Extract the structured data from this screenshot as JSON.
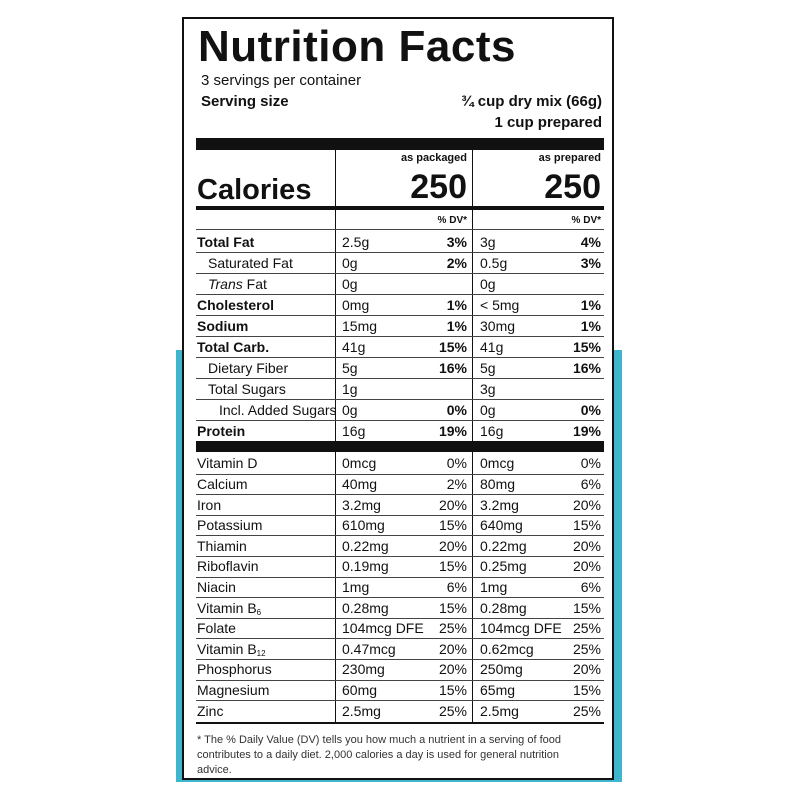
{
  "label": {
    "title": "Nutrition Facts",
    "servings": "3 servings per container",
    "serving_size_label": "Serving size",
    "serving_size_values": [
      "¾ cup dry mix (66g)",
      "1 cup prepared"
    ],
    "calories_label": "Calories",
    "columns": [
      {
        "heading": "as packaged",
        "calories": "250",
        "dv_heading": "% DV*"
      },
      {
        "heading": "as prepared",
        "calories": "250",
        "dv_heading": "% DV*"
      }
    ],
    "nutrients": [
      {
        "name": "Total Fat",
        "cells": [
          "2.5g",
          "3%",
          "3g",
          "4%"
        ]
      },
      {
        "name": "Saturated Fat",
        "cells": [
          "0g",
          "2%",
          "0.5g",
          "3%"
        ]
      },
      {
        "name_italic": "Trans",
        "name": " Fat",
        "cells": [
          "0g",
          null,
          "0g",
          null
        ]
      },
      {
        "name": "Cholesterol",
        "cells": [
          "0mg",
          "1%",
          "< 5mg",
          "1%"
        ]
      },
      {
        "name": "Sodium",
        "cells": [
          "15mg",
          "1%",
          "30mg",
          "1%"
        ]
      },
      {
        "name": "Total Carb.",
        "cells": [
          "41g",
          "15%",
          "41g",
          "15%"
        ]
      },
      {
        "name": "Dietary Fiber",
        "cells": [
          "5g",
          "16%",
          "5g",
          "16%"
        ]
      },
      {
        "name": "Total Sugars",
        "cells": [
          "1g",
          null,
          "3g",
          null
        ]
      },
      {
        "name": "Incl. Added Sugars",
        "cells": [
          "0g",
          "0%",
          "0g",
          "0%"
        ]
      },
      {
        "name": "Protein",
        "cells": [
          "16g",
          "19%",
          "16g",
          "19%"
        ]
      }
    ],
    "vitamins": [
      {
        "name": "Vitamin D",
        "cells": [
          "0mcg",
          "0%",
          "0mcg",
          "0%"
        ]
      },
      {
        "name": "Calcium",
        "cells": [
          "40mg",
          "2%",
          "80mg",
          "6%"
        ]
      },
      {
        "name": "Iron",
        "cells": [
          "3.2mg",
          "20%",
          "3.2mg",
          "20%"
        ]
      },
      {
        "name": "Potassium",
        "cells": [
          "610mg",
          "15%",
          "640mg",
          "15%"
        ]
      },
      {
        "name": "Thiamin",
        "cells": [
          "0.22mg",
          "20%",
          "0.22mg",
          "20%"
        ]
      },
      {
        "name": "Riboflavin",
        "cells": [
          "0.19mg",
          "15%",
          "0.25mg",
          "20%"
        ]
      },
      {
        "name": "Niacin",
        "cells": [
          "1mg",
          "6%",
          "1mg",
          "6%"
        ]
      },
      {
        "name": "Vitamin B",
        "name_sub": "6",
        "cells": [
          "0.28mg",
          "15%",
          "0.28mg",
          "15%"
        ]
      },
      {
        "name": "Folate",
        "cells": [
          "104mcg DFE",
          "25%",
          "104mcg DFE",
          "25%"
        ]
      },
      {
        "name": "Vitamin B",
        "name_sub": "12",
        "cells": [
          "0.47mcg",
          "20%",
          "0.62mcg",
          "25%"
        ]
      },
      {
        "name": "Phosphorus",
        "cells": [
          "230mg",
          "20%",
          "250mg",
          "20%"
        ]
      },
      {
        "name": "Magnesium",
        "cells": [
          "60mg",
          "15%",
          "65mg",
          "15%"
        ]
      },
      {
        "name": "Zinc",
        "cells": [
          "2.5mg",
          "25%",
          "2.5mg",
          "25%"
        ]
      }
    ],
    "footnote": "* The % Daily Value (DV) tells you how much a nutrient in a serving of food contributes to a daily diet. 2,000 calories a day is used for general nutrition advice."
  }
}
